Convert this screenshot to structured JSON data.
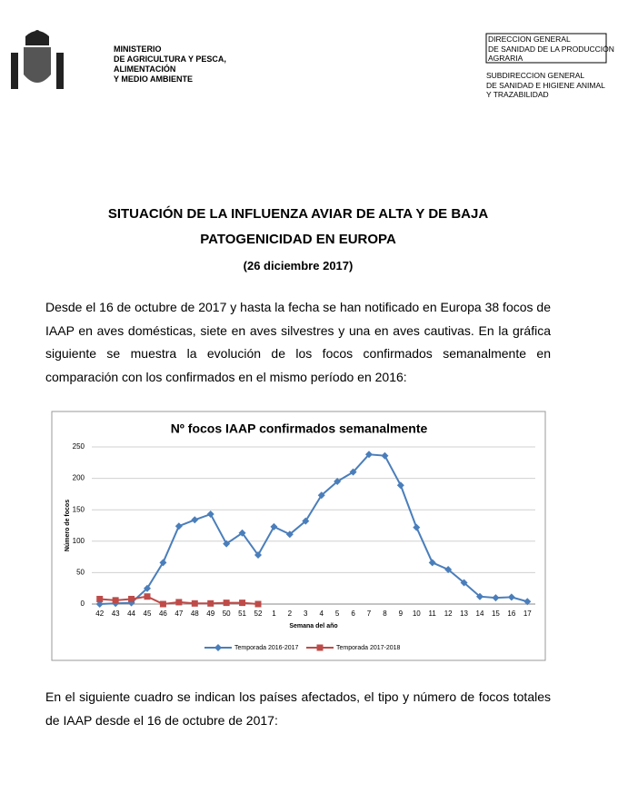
{
  "header": {
    "ministry": [
      "MINISTERIO",
      "DE AGRICULTURA Y PESCA,",
      "ALIMENTACIÓN",
      "Y MEDIO AMBIENTE"
    ],
    "box": [
      "DIRECCION GENERAL",
      "DE SANIDAD DE LA PRODUCCIÓN",
      "AGRARIA"
    ],
    "sub": [
      "SUBDIRECCION GENERAL",
      "DE SANIDAD E HIGIENE ANIMAL",
      "Y TRAZABILIDAD"
    ]
  },
  "title": [
    "SITUACIÓN DE LA INFLUENZA AVIAR DE ALTA Y DE BAJA",
    "PATOGENICIDAD EN EUROPA"
  ],
  "date": "(26 diciembre 2017)",
  "paragraphs": [
    "Desde el 16 de octubre de 2017 y hasta la fecha se han notificado en Europa 38 focos de IAAP en aves domésticas, siete en aves silvestres y una en aves cautivas. En la gráfica siguiente se muestra la evolución de los focos confirmados semanalmente en comparación con los confirmados en el mismo período en 2016:",
    "En el siguiente cuadro se indican los países afectados, el tipo y número de focos totales de IAAP desde el 16 de octubre de 2017:"
  ],
  "chart_data": {
    "type": "line",
    "title": "Nº focos IAAP confirmados semanalmente",
    "x_label": "Semana del año",
    "y_label": "Número de focos",
    "categories": [
      "42",
      "43",
      "44",
      "45",
      "46",
      "47",
      "48",
      "49",
      "50",
      "51",
      "52",
      "1",
      "2",
      "3",
      "4",
      "5",
      "6",
      "7",
      "8",
      "9",
      "10",
      "11",
      "12",
      "13",
      "14",
      "15",
      "16",
      "17"
    ],
    "series": [
      {
        "name": "Temporada 2016-2017",
        "color": "#4a7ebb",
        "marker": "diamond",
        "values": [
          0,
          1,
          2,
          25,
          66,
          124,
          134,
          143,
          96,
          113,
          78,
          123,
          111,
          132,
          173,
          195,
          210,
          238,
          236,
          189,
          122,
          66,
          55,
          34,
          12,
          10,
          11,
          4
        ]
      },
      {
        "name": "Temporada 2017-2018",
        "color": "#be4b48",
        "marker": "square",
        "values": [
          8,
          6,
          8,
          12,
          0,
          3,
          1,
          1,
          2,
          2,
          0,
          null,
          null,
          null,
          null,
          null,
          null,
          null,
          null,
          null,
          null,
          null,
          null,
          null,
          null,
          null,
          null,
          null
        ]
      }
    ],
    "ylim": [
      0,
      250
    ],
    "yticks": [
      0,
      50,
      100,
      150,
      200,
      250
    ],
    "grid": true,
    "legend": "bottom"
  }
}
